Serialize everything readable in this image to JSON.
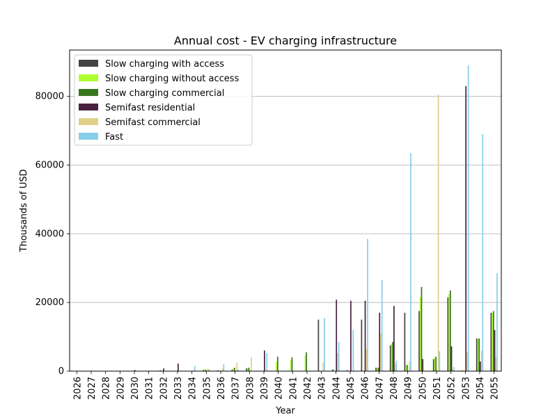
{
  "chart_data": {
    "type": "bar",
    "title": "Annual cost - EV charging infrastructure",
    "xlabel": "Year",
    "ylabel": "Thousands of USD",
    "ylim": [
      0,
      93500
    ],
    "yticks": [
      0,
      20000,
      40000,
      60000,
      80000
    ],
    "grid": "y",
    "legend_position": "top-left",
    "categories": [
      "2026",
      "2027",
      "2028",
      "2029",
      "2030",
      "2031",
      "2032",
      "2033",
      "2034",
      "2035",
      "2036",
      "2037",
      "2038",
      "2039",
      "2040",
      "2041",
      "2042",
      "2043",
      "2044",
      "2045",
      "2046",
      "2047",
      "2048",
      "2049",
      "2050",
      "2051",
      "2052",
      "2053",
      "2054",
      "2055"
    ],
    "series": [
      {
        "name": "Slow charging with access",
        "color": "#444444",
        "values": [
          0,
          0,
          0,
          0,
          0,
          0,
          200,
          100,
          100,
          300,
          200,
          400,
          800,
          0,
          0,
          0,
          0,
          15000,
          500,
          300,
          15000,
          1000,
          7500,
          17000,
          17500,
          3500,
          21500,
          200,
          9500,
          17000
        ]
      },
      {
        "name": "Slow charging without access",
        "color": "#adff2f",
        "values": [
          0,
          0,
          0,
          0,
          0,
          0,
          300,
          100,
          100,
          600,
          300,
          800,
          1000,
          0,
          2800,
          3300,
          4500,
          0,
          0,
          0,
          0,
          1000,
          8000,
          1800,
          21500,
          4000,
          22500,
          0,
          9500,
          17000
        ]
      },
      {
        "name": "Slow charging commercial",
        "color": "#38761d",
        "values": [
          0,
          0,
          0,
          0,
          0,
          0,
          0,
          0,
          0,
          400,
          100,
          1000,
          1000,
          0,
          4200,
          4000,
          5500,
          0,
          0,
          0,
          0,
          1000,
          8500,
          1800,
          24500,
          4200,
          23500,
          0,
          9500,
          17500
        ]
      },
      {
        "name": "Semifast residential",
        "color": "#4b2140",
        "values": [
          0,
          0,
          0,
          0,
          300,
          0,
          800,
          2200,
          0,
          0,
          0,
          0,
          0,
          6000,
          0,
          0,
          0,
          0,
          20800,
          20500,
          20500,
          17000,
          19000,
          0,
          3500,
          0,
          7200,
          83000,
          2800,
          12000
        ]
      },
      {
        "name": "Semifast commercial",
        "color": "#e0d08a",
        "values": [
          0,
          0,
          0,
          0,
          0,
          0,
          0,
          0,
          300,
          700,
          700,
          2500,
          4000,
          0,
          0,
          0,
          0,
          2500,
          5300,
          0,
          6500,
          11000,
          2000,
          2800,
          0,
          80500,
          500,
          5500,
          6000,
          4000
        ]
      },
      {
        "name": "Fast",
        "color": "#87ceeb",
        "values": [
          0,
          0,
          0,
          0,
          0,
          0,
          0,
          0,
          1500,
          500,
          2000,
          400,
          0,
          5300,
          0,
          0,
          0,
          15500,
          8500,
          12000,
          38500,
          26500,
          3000,
          63500,
          0,
          5800,
          1200,
          89000,
          69000,
          28500
        ]
      }
    ]
  }
}
